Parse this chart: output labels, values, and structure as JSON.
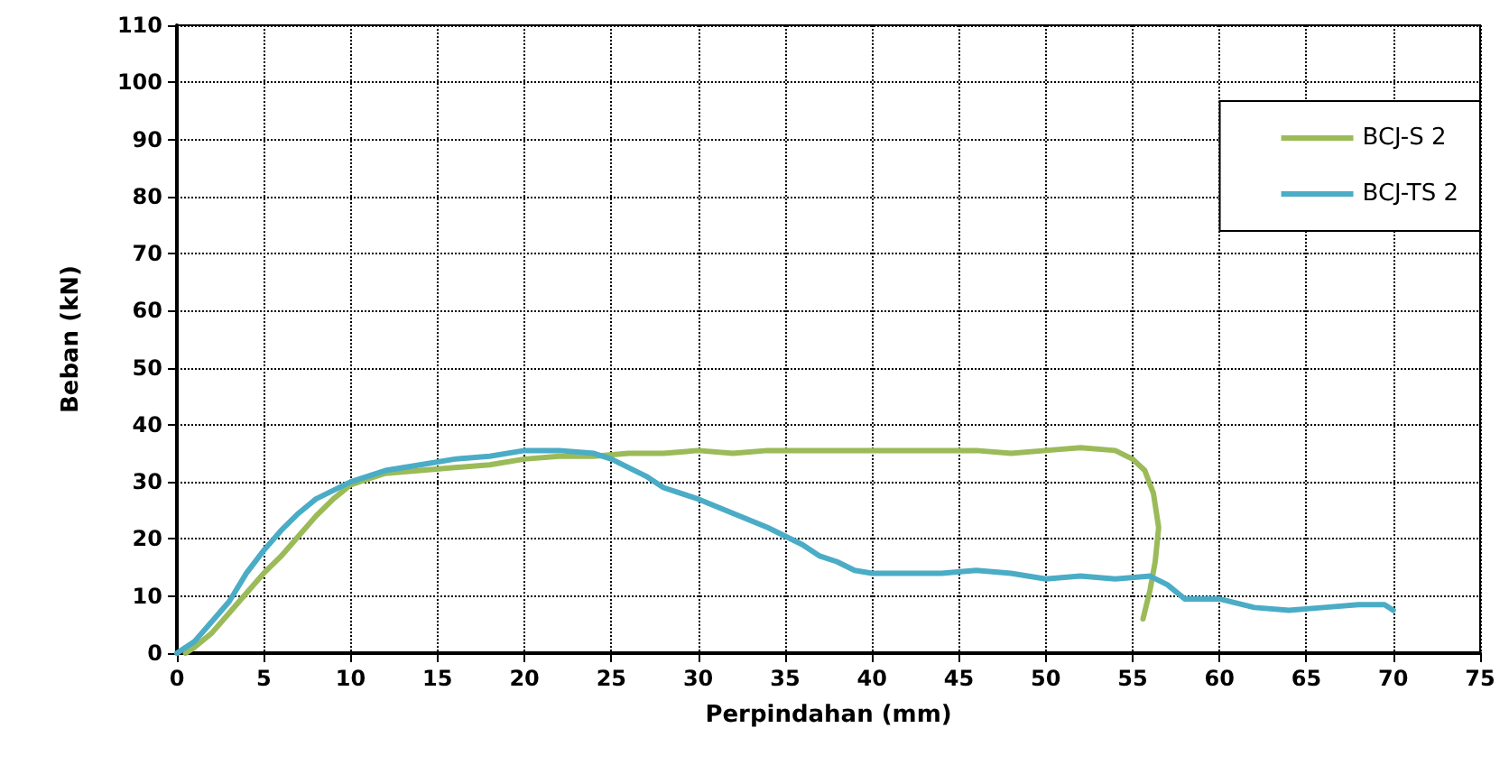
{
  "chart_data": {
    "type": "line",
    "xlabel": "Perpindahan (mm)",
    "ylabel": "Beban (kN)",
    "xlim": [
      0,
      75
    ],
    "xticks": [
      0,
      5,
      10,
      15,
      20,
      25,
      30,
      35,
      40,
      45,
      50,
      55,
      60,
      65,
      70,
      75
    ],
    "ylim": [
      0,
      110
    ],
    "yticks": [
      0,
      10,
      20,
      30,
      40,
      50,
      60,
      70,
      80,
      90,
      100,
      110
    ],
    "grid": true,
    "legend": "top right",
    "marker": "none",
    "line_style": "solid",
    "series": [
      {
        "name": "BCJ-S 2",
        "color": "#9bbb59",
        "x": [
          0.5,
          1,
          2,
          3,
          4,
          5,
          6,
          7,
          8,
          9,
          10,
          11,
          12,
          14,
          16,
          18,
          20,
          22,
          24,
          26,
          28,
          30,
          32,
          34,
          36,
          38,
          40,
          42,
          44,
          46,
          48,
          50,
          52,
          54,
          55,
          55.7,
          56.2,
          56.5,
          56.3,
          56,
          55.6
        ],
        "values": [
          0,
          1,
          3.5,
          7,
          10.5,
          14,
          17,
          20.5,
          24,
          27,
          29.5,
          30.5,
          31.5,
          32,
          32.5,
          33,
          34,
          34.5,
          34.5,
          35,
          35,
          35.5,
          35,
          35.5,
          35.5,
          35.5,
          35.5,
          35.5,
          35.5,
          35.5,
          35,
          35.5,
          36,
          35.5,
          34,
          32,
          28,
          22,
          16,
          11,
          6
        ]
      },
      {
        "name": "BCJ-TS 2",
        "color": "#4bacc6",
        "x": [
          0,
          1,
          2,
          3,
          4,
          5,
          6,
          7,
          8,
          9,
          10,
          12,
          14,
          16,
          18,
          20,
          22,
          24,
          25,
          26,
          27,
          28,
          30,
          32,
          34,
          36,
          37,
          38,
          39,
          40,
          42,
          44,
          46,
          48,
          50,
          52,
          54,
          56,
          57,
          58,
          60,
          62,
          64,
          66,
          68,
          69.5,
          70
        ],
        "values": [
          0,
          2,
          5.5,
          9,
          14,
          18,
          21.5,
          24.5,
          27,
          28.5,
          30,
          32,
          33,
          34,
          34.5,
          35.5,
          35.5,
          35,
          34,
          32.5,
          31,
          29,
          27,
          24.5,
          22,
          19,
          17,
          16,
          14.5,
          14,
          14,
          14,
          14.5,
          14,
          13,
          13.5,
          13,
          13.5,
          12,
          9.5,
          9.5,
          8,
          7.5,
          8,
          8.5,
          8.5,
          7.5
        ]
      }
    ]
  }
}
